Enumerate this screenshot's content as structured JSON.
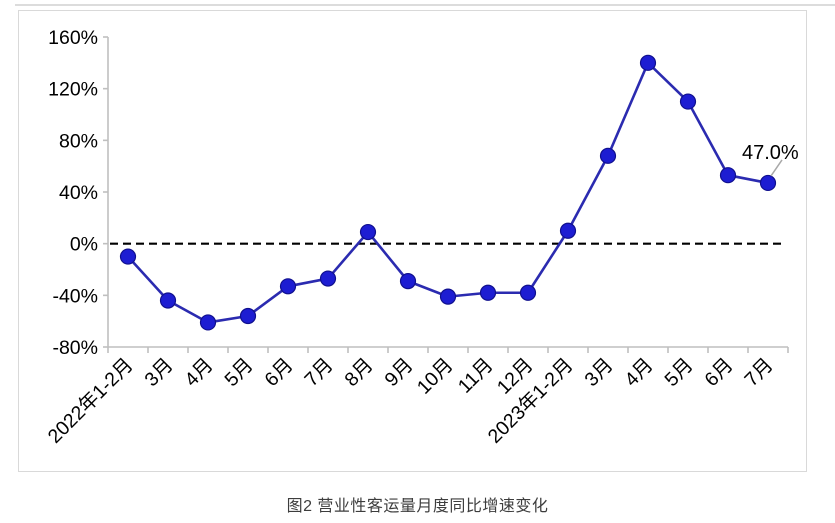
{
  "chart_data": {
    "type": "line",
    "title": "图2  营业性客运量月度同比增速变化",
    "categories": [
      "2022年1-2月",
      "3月",
      "4月",
      "5月",
      "6月",
      "7月",
      "8月",
      "9月",
      "10月",
      "11月",
      "12月",
      "2023年1-2月",
      "3月",
      "4月",
      "5月",
      "6月",
      "7月"
    ],
    "series": [
      {
        "name": "营业性客运量月度同比增速",
        "values": [
          -10,
          -44,
          -61,
          -56,
          -33,
          -27,
          9,
          -29,
          -41,
          -38,
          -38,
          10,
          68,
          140,
          110,
          53,
          47
        ]
      }
    ],
    "xlabel": "",
    "ylabel": "",
    "ylim": [
      -80,
      160
    ],
    "ytick_step": 40,
    "ytick_labels": [
      "160%",
      "120%",
      "80%",
      "40%",
      "0%",
      "-40%",
      "-80%"
    ],
    "grid": "off",
    "legend": "none",
    "zero_line_style": "dashed-black",
    "data_label": {
      "index": 16,
      "text": "47.0%"
    },
    "colors": {
      "line": "#2b2bb0",
      "marker_fill": "#1d1dd2",
      "marker_stroke": "#10108e",
      "axis": "#bfbfbf",
      "zero_line": "#000000",
      "frame_border": "#d9d9d9",
      "tick_text": "#000000",
      "caption_text": "#3d3d3d",
      "leader_line": "#a8a8a8"
    }
  }
}
